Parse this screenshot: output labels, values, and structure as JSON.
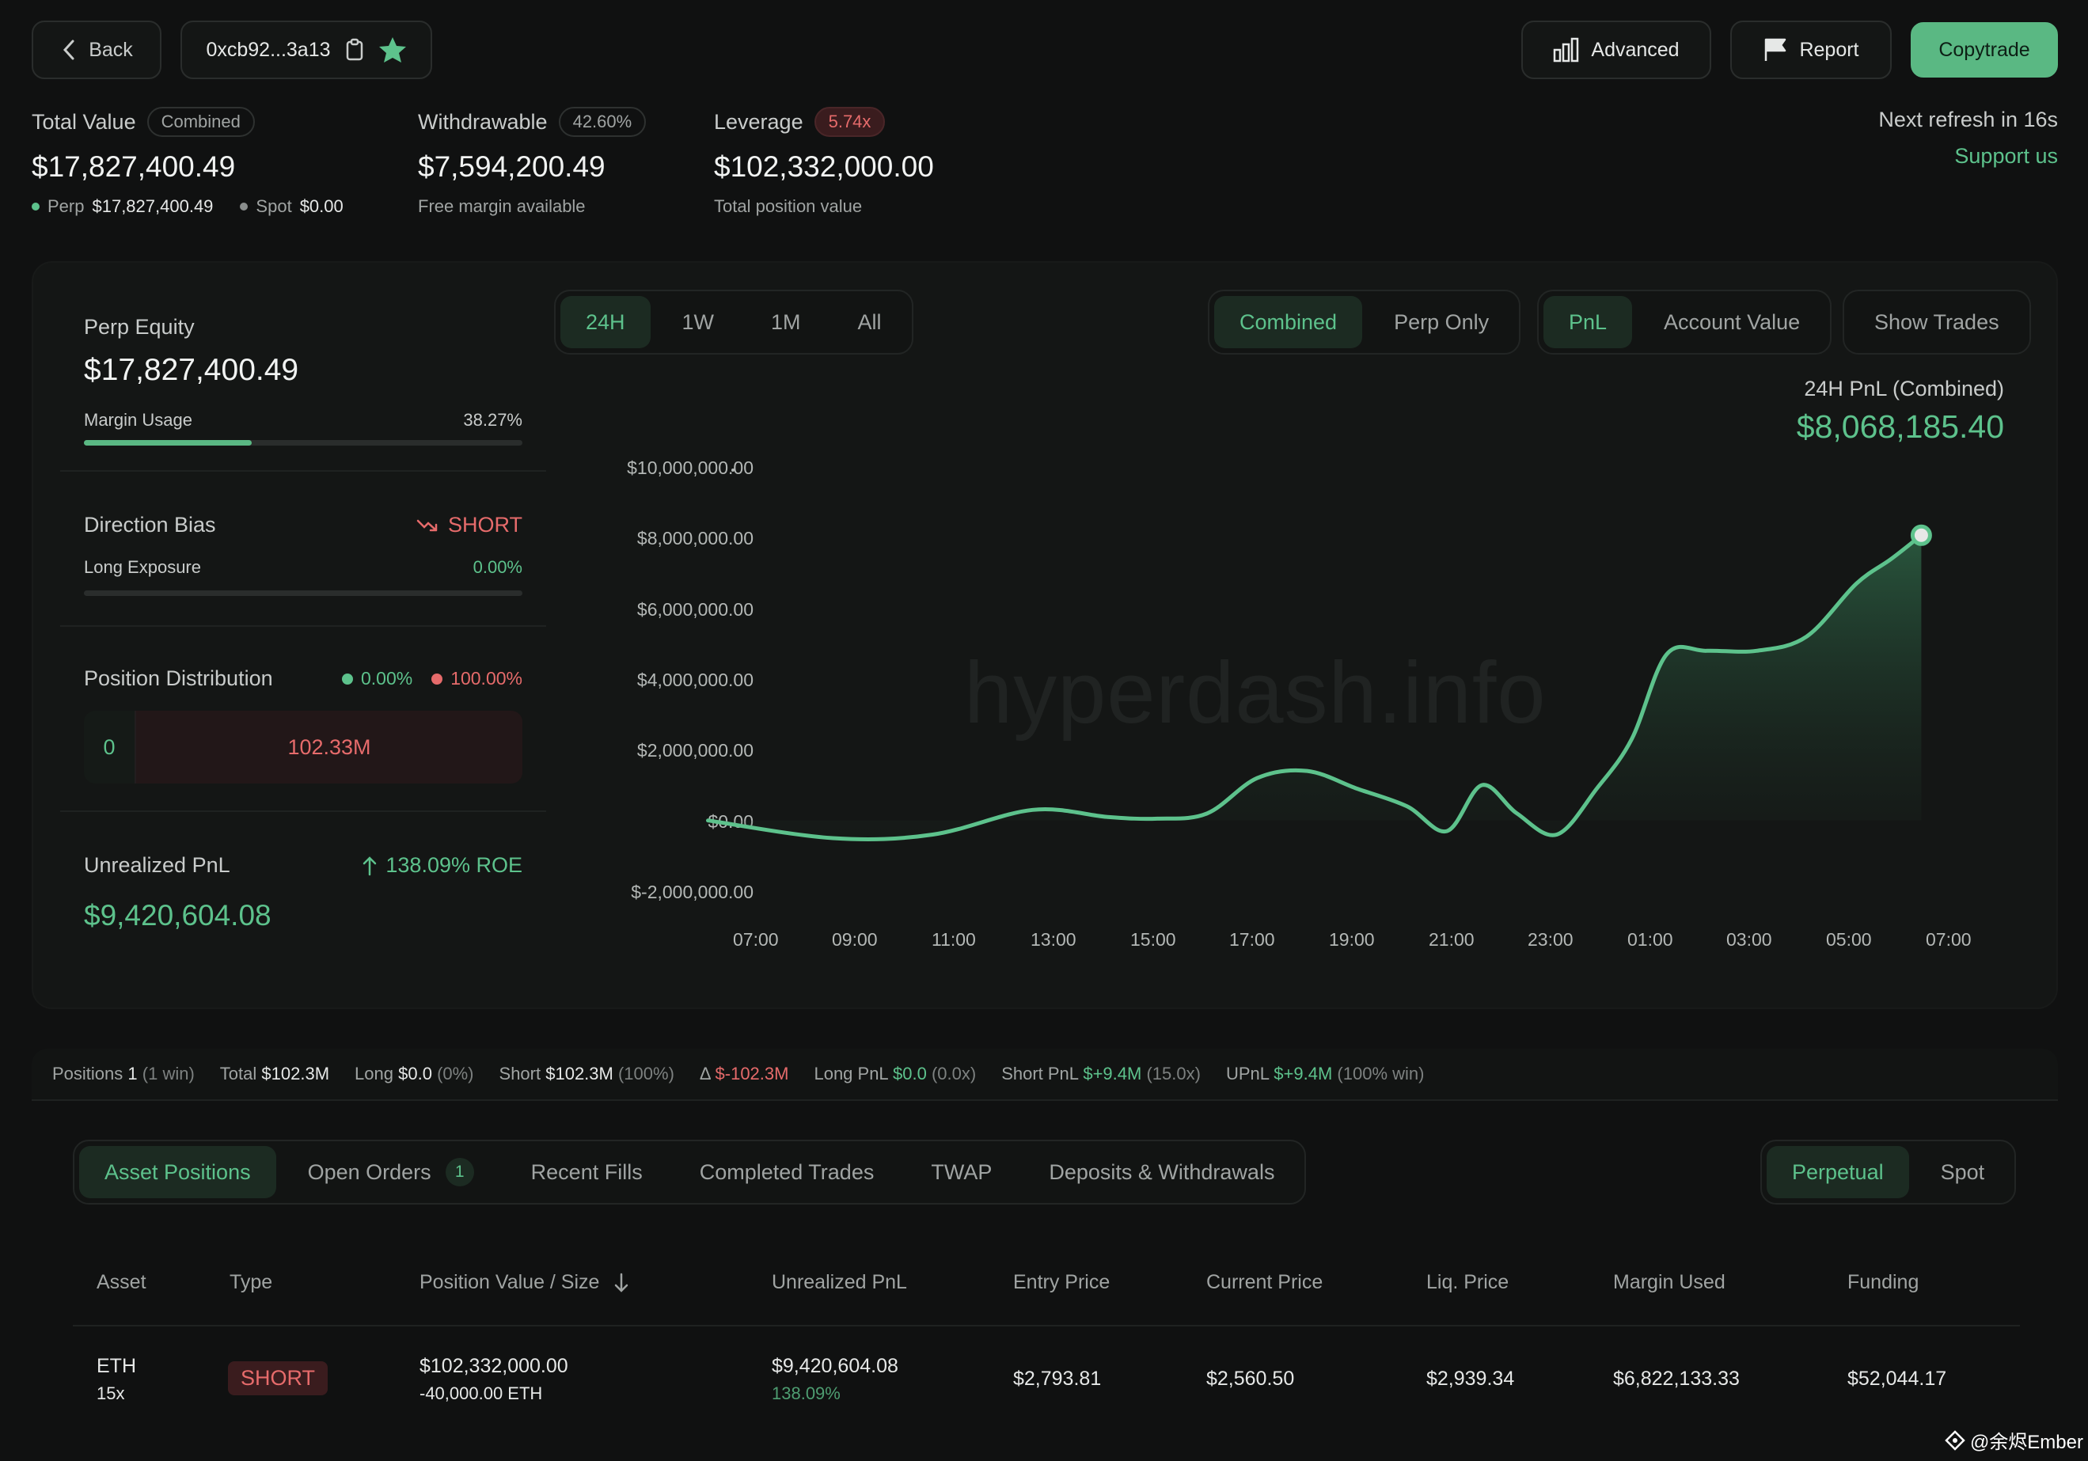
{
  "header": {
    "back_label": "Back",
    "address": "0xcb92...3a13",
    "advanced_label": "Advanced",
    "report_label": "Report",
    "copytrade_label": "Copytrade"
  },
  "stats": {
    "total_value_label": "Total Value",
    "total_value_badge": "Combined",
    "total_value": "$17,827,400.49",
    "perp_label": "Perp",
    "perp_value": "$17,827,400.49",
    "spot_label": "Spot",
    "spot_value": "$0.00",
    "withdrawable_label": "Withdrawable",
    "withdrawable_badge": "42.60%",
    "withdrawable_value": "$7,594,200.49",
    "withdrawable_sub": "Free margin available",
    "leverage_label": "Leverage",
    "leverage_badge": "5.74x",
    "leverage_value": "$102,332,000.00",
    "leverage_sub": "Total position value",
    "refresh_text": "Next refresh in 16s",
    "support_label": "Support us"
  },
  "left_panel": {
    "perp_equity_label": "Perp Equity",
    "perp_equity_value": "$17,827,400.49",
    "margin_usage_label": "Margin Usage",
    "margin_usage_value": "38.27%",
    "margin_usage_fraction": 0.3827,
    "direction_bias_label": "Direction Bias",
    "direction_bias_value": "SHORT",
    "long_exposure_label": "Long Exposure",
    "long_exposure_value": "0.00%",
    "position_distribution_label": "Position Distribution",
    "long_pct": "0.00%",
    "short_pct": "100.00%",
    "long_amount": "0",
    "short_amount": "102.33M",
    "unrealized_pnl_label": "Unrealized PnL",
    "roe_label": "138.09% ROE",
    "unrealized_pnl_value": "$9,420,604.08"
  },
  "chart_controls": {
    "ranges": [
      "24H",
      "1W",
      "1M",
      "All"
    ],
    "active_range": "24H",
    "modes": [
      "Combined",
      "Perp Only"
    ],
    "active_mode": "Combined",
    "metrics": [
      "PnL",
      "Account Value"
    ],
    "active_metric": "PnL",
    "show_trades_label": "Show Trades"
  },
  "chart_data": {
    "type": "area",
    "title": "24H PnL (Combined)",
    "headline_value": "$8,068,185.40",
    "watermark": "hyperdash.info",
    "yticks": [
      "$10,000,000.00",
      "$8,000,000.00",
      "$6,000,000.00",
      "$4,000,000.00",
      "$2,000,000.00",
      "$0.00",
      "$-2,000,000.00"
    ],
    "xticks": [
      "07:00",
      "09:00",
      "11:00",
      "13:00",
      "15:00",
      "17:00",
      "19:00",
      "21:00",
      "23:00",
      "01:00",
      "03:00",
      "05:00",
      "07:00"
    ],
    "ylim": [
      -2000000,
      10000000
    ],
    "x_hours": [
      6.5,
      9.0,
      11.0,
      13.0,
      14.5,
      15.5,
      16.5,
      17.5,
      18.5,
      19.5,
      20.5,
      21.3,
      22.0,
      22.7,
      23.5,
      24.3,
      25.0,
      25.7,
      26.5,
      27.5,
      28.5,
      29.5,
      30.2,
      30.8
    ],
    "values": [
      0,
      -500000,
      -400000,
      300000,
      100000,
      50000,
      200000,
      1200000,
      1400000,
      900000,
      400000,
      -300000,
      1000000,
      200000,
      -400000,
      900000,
      2300000,
      4700000,
      4800000,
      4800000,
      5200000,
      6700000,
      7400000,
      8068185
    ]
  },
  "summary": {
    "positions_label": "Positions",
    "positions_value": "1",
    "positions_note": "(1 win)",
    "total_label": "Total",
    "total_value": "$102.3M",
    "long_label": "Long",
    "long_value": "$0.0",
    "long_note": "(0%)",
    "short_label": "Short",
    "short_value": "$102.3M",
    "short_note": "(100%)",
    "delta_label": "Δ",
    "delta_value": "$-102.3M",
    "long_pnl_label": "Long PnL",
    "long_pnl_value": "$0.0",
    "long_pnl_note": "(0.0x)",
    "short_pnl_label": "Short PnL",
    "short_pnl_value": "$+9.4M",
    "short_pnl_note": "(15.0x)",
    "upnl_label": "UPnL",
    "upnl_value": "$+9.4M",
    "upnl_note": "(100% win)"
  },
  "tabs": {
    "items": [
      "Asset Positions",
      "Open Orders",
      "Recent Fills",
      "Completed Trades",
      "TWAP",
      "Deposits & Withdrawals"
    ],
    "active": "Asset Positions",
    "open_orders_count": "1",
    "market_types": [
      "Perpetual",
      "Spot"
    ],
    "active_market": "Perpetual"
  },
  "table": {
    "headers": [
      "Asset",
      "Type",
      "Position Value / Size",
      "Unrealized PnL",
      "Entry Price",
      "Current Price",
      "Liq. Price",
      "Margin Used",
      "Funding"
    ],
    "rows": [
      {
        "asset": "ETH",
        "leverage": "15x",
        "type": "SHORT",
        "position_value": "$102,332,000.00",
        "size": "-40,000.00 ETH",
        "upnl": "$9,420,604.08",
        "upnl_pct": "138.09%",
        "entry_price": "$2,793.81",
        "current_price": "$2,560.50",
        "liq_price": "$2,939.34",
        "margin_used": "$6,822,133.33",
        "funding": "$52,044.17"
      }
    ]
  },
  "footer_watermark": "@余烬Ember",
  "colors": {
    "accent": "#5dc28c",
    "danger": "#e66b6b",
    "background": "#101111"
  }
}
